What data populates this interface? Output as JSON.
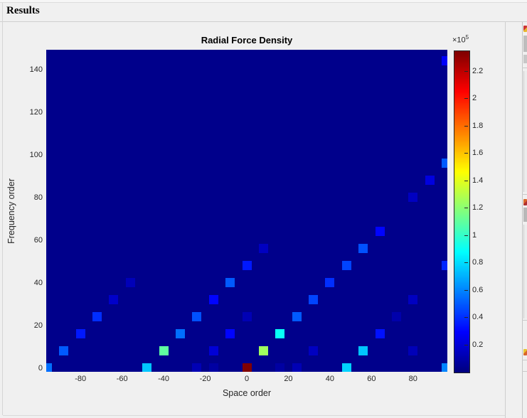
{
  "panel": {
    "title": "Results"
  },
  "chart_data": {
    "type": "heatmap",
    "title": "Radial Force Density",
    "xlabel": "Space order",
    "ylabel": "Frequency order",
    "xlim": [
      -96.5,
      96.5
    ],
    "ylim": [
      -1.7,
      149.3
    ],
    "xticks": [
      -80,
      -60,
      -40,
      -20,
      0,
      20,
      40,
      60,
      80
    ],
    "yticks": [
      0,
      20,
      40,
      60,
      80,
      100,
      120,
      140
    ],
    "grid": false,
    "plot_background_color": "#00008b",
    "colormap": "jet",
    "colorbar": {
      "position": "right",
      "label_base": "×10",
      "label_exp": "5",
      "value_scale": 100000,
      "vmin": 0,
      "vmax": 2.35,
      "ticks": [
        0.2,
        0.4,
        0.6,
        0.8,
        1,
        1.2,
        1.4,
        1.6,
        1.8,
        2,
        2.2
      ]
    },
    "points_note": "value is in units of value_scale (1e5); squares at multiples of 8 in space and frequency order",
    "points": [
      {
        "space": -96,
        "freq": 0,
        "value": 0.55
      },
      {
        "space": -48,
        "freq": 0,
        "value": 0.75
      },
      {
        "space": -24,
        "freq": 0,
        "value": 0.12
      },
      {
        "space": -16,
        "freq": 0,
        "value": 0.08
      },
      {
        "space": 0,
        "freq": 0,
        "value": 2.35
      },
      {
        "space": 16,
        "freq": 0,
        "value": 0.08
      },
      {
        "space": 24,
        "freq": 0,
        "value": 0.12
      },
      {
        "space": 48,
        "freq": 0,
        "value": 0.78
      },
      {
        "space": 96,
        "freq": 0,
        "value": 0.6
      },
      {
        "space": -88,
        "freq": 8,
        "value": 0.5
      },
      {
        "space": -40,
        "freq": 8,
        "value": 1.1
      },
      {
        "space": -16,
        "freq": 8,
        "value": 0.2
      },
      {
        "space": 8,
        "freq": 8,
        "value": 1.25
      },
      {
        "space": 32,
        "freq": 8,
        "value": 0.15
      },
      {
        "space": 56,
        "freq": 8,
        "value": 0.75
      },
      {
        "space": 80,
        "freq": 8,
        "value": 0.13
      },
      {
        "space": -80,
        "freq": 16,
        "value": 0.35
      },
      {
        "space": -32,
        "freq": 16,
        "value": 0.55
      },
      {
        "space": -8,
        "freq": 16,
        "value": 0.3
      },
      {
        "space": 16,
        "freq": 16,
        "value": 0.9
      },
      {
        "space": 64,
        "freq": 16,
        "value": 0.33
      },
      {
        "space": -72,
        "freq": 24,
        "value": 0.4
      },
      {
        "space": -24,
        "freq": 24,
        "value": 0.48
      },
      {
        "space": 0,
        "freq": 24,
        "value": 0.12
      },
      {
        "space": 24,
        "freq": 24,
        "value": 0.5
      },
      {
        "space": 72,
        "freq": 24,
        "value": 0.1
      },
      {
        "space": -64,
        "freq": 32,
        "value": 0.17
      },
      {
        "space": -16,
        "freq": 32,
        "value": 0.3
      },
      {
        "space": 32,
        "freq": 32,
        "value": 0.45
      },
      {
        "space": 80,
        "freq": 32,
        "value": 0.15
      },
      {
        "space": -56,
        "freq": 40,
        "value": 0.13
      },
      {
        "space": -8,
        "freq": 40,
        "value": 0.5
      },
      {
        "space": 40,
        "freq": 40,
        "value": 0.4
      },
      {
        "space": 0,
        "freq": 48,
        "value": 0.35
      },
      {
        "space": 48,
        "freq": 48,
        "value": 0.45
      },
      {
        "space": 96,
        "freq": 48,
        "value": 0.38
      },
      {
        "space": 8,
        "freq": 56,
        "value": 0.15
      },
      {
        "space": 56,
        "freq": 56,
        "value": 0.48
      },
      {
        "space": 64,
        "freq": 64,
        "value": 0.3
      },
      {
        "space": 80,
        "freq": 80,
        "value": 0.15
      },
      {
        "space": 88,
        "freq": 88,
        "value": 0.22
      },
      {
        "space": 96,
        "freq": 96,
        "value": 0.5
      },
      {
        "space": 96,
        "freq": 144,
        "value": 0.28
      }
    ]
  },
  "right_edge_panel": {
    "description": "cut-off docked panel sliver",
    "icons": [
      {
        "name": "docked-panel-icon-top",
        "colors": [
          "#cc3333",
          "#e8b830"
        ]
      },
      {
        "name": "docked-panel-icon-middle",
        "colors": [
          "#d9662a",
          "#b03030"
        ]
      },
      {
        "name": "docked-panel-icon-bottom",
        "colors": [
          "#e8c232",
          "#d9662a"
        ]
      }
    ]
  }
}
